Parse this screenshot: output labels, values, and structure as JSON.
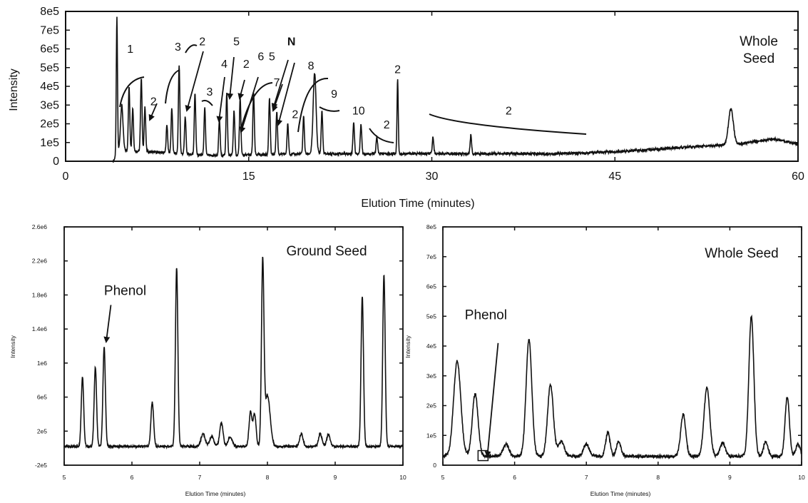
{
  "charts": [
    {
      "type": "line",
      "panel": "top",
      "panel_label": "Whole\nSeed",
      "xlabel": "Elution Time (minutes)",
      "ylabel": "Intensity",
      "xlim": [
        0,
        60
      ],
      "ylim": [
        0,
        800000
      ],
      "x_ticks": [
        0,
        15,
        30,
        45,
        60
      ],
      "x_tick_labels": [
        "0",
        "15",
        "30",
        "45",
        "60"
      ],
      "y_ticks": [
        0,
        100000,
        200000,
        300000,
        400000,
        500000,
        600000,
        700000,
        800000
      ],
      "y_tick_labels": [
        "0",
        "1e5",
        "2e5",
        "3e5",
        "4e5",
        "5e5",
        "6e5",
        "7e5",
        "8e5"
      ],
      "baseline": [
        [
          3.9,
          0
        ],
        [
          4.4,
          60000
        ],
        [
          12,
          30000
        ],
        [
          20,
          40000
        ],
        [
          30,
          40000
        ],
        [
          40,
          40000
        ],
        [
          45,
          50000
        ],
        [
          52,
          80000
        ],
        [
          55,
          90000
        ],
        [
          58,
          120000
        ],
        [
          60,
          90000
        ]
      ],
      "peaks": [
        {
          "x": 4.2,
          "y": 730000,
          "w": 0.05
        },
        {
          "x": 4.6,
          "y": 240000,
          "w": 0.1
        },
        {
          "x": 5.2,
          "y": 340000,
          "w": 0.06
        },
        {
          "x": 5.5,
          "y": 230000,
          "w": 0.06
        },
        {
          "x": 6.2,
          "y": 395000,
          "w": 0.06
        },
        {
          "x": 6.5,
          "y": 240000,
          "w": 0.06
        },
        {
          "x": 8.3,
          "y": 150000,
          "w": 0.06
        },
        {
          "x": 8.7,
          "y": 240000,
          "w": 0.06
        },
        {
          "x": 9.3,
          "y": 470000,
          "w": 0.06
        },
        {
          "x": 9.8,
          "y": 200000,
          "w": 0.06
        },
        {
          "x": 10.6,
          "y": 330000,
          "w": 0.06
        },
        {
          "x": 11.4,
          "y": 250000,
          "w": 0.06
        },
        {
          "x": 12.6,
          "y": 190000,
          "w": 0.06
        },
        {
          "x": 13.2,
          "y": 330000,
          "w": 0.06
        },
        {
          "x": 13.8,
          "y": 240000,
          "w": 0.06
        },
        {
          "x": 14.3,
          "y": 300000,
          "w": 0.06
        },
        {
          "x": 15.4,
          "y": 330000,
          "w": 0.06
        },
        {
          "x": 16.7,
          "y": 300000,
          "w": 0.06
        },
        {
          "x": 17.3,
          "y": 230000,
          "w": 0.06
        },
        {
          "x": 18.2,
          "y": 160000,
          "w": 0.06
        },
        {
          "x": 19.5,
          "y": 200000,
          "w": 0.06
        },
        {
          "x": 20.4,
          "y": 430000,
          "w": 0.12
        },
        {
          "x": 21.0,
          "y": 230000,
          "w": 0.06
        },
        {
          "x": 23.6,
          "y": 170000,
          "w": 0.06
        },
        {
          "x": 24.2,
          "y": 160000,
          "w": 0.06
        },
        {
          "x": 25.5,
          "y": 90000,
          "w": 0.06
        },
        {
          "x": 27.2,
          "y": 400000,
          "w": 0.05
        },
        {
          "x": 30.1,
          "y": 90000,
          "w": 0.06
        },
        {
          "x": 33.2,
          "y": 100000,
          "w": 0.06
        },
        {
          "x": 54.5,
          "y": 190000,
          "w": 0.2
        }
      ],
      "annotations": [
        {
          "text": "1",
          "x": 5.3,
          "y": 580000
        },
        {
          "text": "2",
          "x": 7.2,
          "y": 300000
        },
        {
          "text": "3",
          "x": 9.2,
          "y": 590000
        },
        {
          "text": "2",
          "x": 11.2,
          "y": 620000
        },
        {
          "text": "3",
          "x": 11.8,
          "y": 350000
        },
        {
          "text": "4",
          "x": 13.0,
          "y": 500000
        },
        {
          "text": "5",
          "x": 14.0,
          "y": 620000
        },
        {
          "text": "2",
          "x": 14.8,
          "y": 500000
        },
        {
          "text": "6",
          "x": 16.0,
          "y": 540000
        },
        {
          "text": "5",
          "x": 16.9,
          "y": 540000
        },
        {
          "text": "N",
          "x": 18.5,
          "y": 620000
        },
        {
          "text": "7",
          "x": 17.3,
          "y": 400000
        },
        {
          "text": "8",
          "x": 20.1,
          "y": 490000
        },
        {
          "text": "2",
          "x": 18.8,
          "y": 230000
        },
        {
          "text": "9",
          "x": 22.0,
          "y": 340000
        },
        {
          "text": "10",
          "x": 24.0,
          "y": 250000
        },
        {
          "text": "2",
          "x": 26.3,
          "y": 175000
        },
        {
          "text": "2",
          "x": 27.2,
          "y": 470000
        },
        {
          "text": "2",
          "x": 36.3,
          "y": 250000
        }
      ]
    },
    {
      "type": "line",
      "panel": "bottom-left",
      "panel_label": "Ground Seed",
      "xlabel": "Elution Time (minutes)",
      "ylabel": "Intensity",
      "xlim": [
        5,
        10
      ],
      "ylim": [
        -200000,
        2600000
      ],
      "x_ticks": [
        5,
        6,
        7,
        8,
        9,
        10
      ],
      "x_tick_labels": [
        "5",
        "6",
        "7",
        "8",
        "9",
        "10"
      ],
      "y_ticks": [
        -200000,
        200000,
        600000,
        1000000,
        1400000,
        1800000,
        2200000,
        2600000
      ],
      "y_tick_labels": [
        "-2e5",
        "2e5",
        "6e5",
        "1e6",
        "1.4e6",
        "1.8e6",
        "2.2e6",
        "2.6e6"
      ],
      "baseline": [
        [
          5.0,
          20000
        ],
        [
          10.0,
          20000
        ]
      ],
      "peaks": [
        {
          "x": 5.27,
          "y": 820000,
          "w": 0.018
        },
        {
          "x": 5.46,
          "y": 930000,
          "w": 0.018
        },
        {
          "x": 5.59,
          "y": 1170000,
          "w": 0.018
        },
        {
          "x": 6.3,
          "y": 520000,
          "w": 0.02
        },
        {
          "x": 6.66,
          "y": 2100000,
          "w": 0.018
        },
        {
          "x": 7.05,
          "y": 150000,
          "w": 0.03
        },
        {
          "x": 7.18,
          "y": 120000,
          "w": 0.03
        },
        {
          "x": 7.32,
          "y": 280000,
          "w": 0.025
        },
        {
          "x": 7.45,
          "y": 110000,
          "w": 0.03
        },
        {
          "x": 7.75,
          "y": 400000,
          "w": 0.022
        },
        {
          "x": 7.81,
          "y": 380000,
          "w": 0.022
        },
        {
          "x": 7.93,
          "y": 2100000,
          "w": 0.018
        },
        {
          "x": 8.0,
          "y": 600000,
          "w": 0.04
        },
        {
          "x": 8.5,
          "y": 150000,
          "w": 0.025
        },
        {
          "x": 8.78,
          "y": 150000,
          "w": 0.025
        },
        {
          "x": 8.9,
          "y": 140000,
          "w": 0.025
        },
        {
          "x": 9.4,
          "y": 1760000,
          "w": 0.018
        },
        {
          "x": 9.72,
          "y": 2020000,
          "w": 0.018
        }
      ],
      "annotation": {
        "text": "Phenol",
        "x": 5.9,
        "y": 1800000,
        "arrow_to": [
          5.62,
          1250000
        ]
      }
    },
    {
      "type": "line",
      "panel": "bottom-right",
      "panel_label": "Whole Seed",
      "xlabel": "Elution Time (minutes)",
      "ylabel": "Intensity",
      "xlim": [
        5,
        10
      ],
      "ylim": [
        0,
        800000
      ],
      "x_ticks": [
        5,
        6,
        7,
        8,
        9,
        10
      ],
      "x_tick_labels": [
        "5",
        "6",
        "7",
        "8",
        "9",
        "10"
      ],
      "y_ticks": [
        0,
        100000,
        200000,
        300000,
        400000,
        500000,
        600000,
        700000,
        800000
      ],
      "y_tick_labels": [
        "0",
        "1e5",
        "2e5",
        "3e5",
        "4e5",
        "5e5",
        "6e5",
        "7e5",
        "8e5"
      ],
      "baseline": [
        [
          5.0,
          30000
        ],
        [
          10.0,
          30000
        ]
      ],
      "peaks": [
        {
          "x": 5.2,
          "y": 320000,
          "w": 0.05
        },
        {
          "x": 5.45,
          "y": 210000,
          "w": 0.04
        },
        {
          "x": 5.88,
          "y": 40000,
          "w": 0.04
        },
        {
          "x": 6.2,
          "y": 390000,
          "w": 0.04
        },
        {
          "x": 6.5,
          "y": 240000,
          "w": 0.04
        },
        {
          "x": 6.65,
          "y": 50000,
          "w": 0.04
        },
        {
          "x": 7.0,
          "y": 40000,
          "w": 0.04
        },
        {
          "x": 7.3,
          "y": 80000,
          "w": 0.03
        },
        {
          "x": 7.45,
          "y": 50000,
          "w": 0.03
        },
        {
          "x": 8.35,
          "y": 140000,
          "w": 0.035
        },
        {
          "x": 8.68,
          "y": 230000,
          "w": 0.04
        },
        {
          "x": 8.9,
          "y": 45000,
          "w": 0.035
        },
        {
          "x": 9.3,
          "y": 470000,
          "w": 0.035
        },
        {
          "x": 9.5,
          "y": 50000,
          "w": 0.03
        },
        {
          "x": 9.8,
          "y": 200000,
          "w": 0.03
        },
        {
          "x": 9.95,
          "y": 40000,
          "w": 0.03
        }
      ],
      "annotation": {
        "text": "Phenol",
        "x": 5.6,
        "y": 490000,
        "arrow_from": [
          5.77,
          410000
        ],
        "arrow_to": [
          5.62,
          30000
        ]
      },
      "marker": {
        "x": 5.57,
        "y": 25000
      }
    }
  ]
}
